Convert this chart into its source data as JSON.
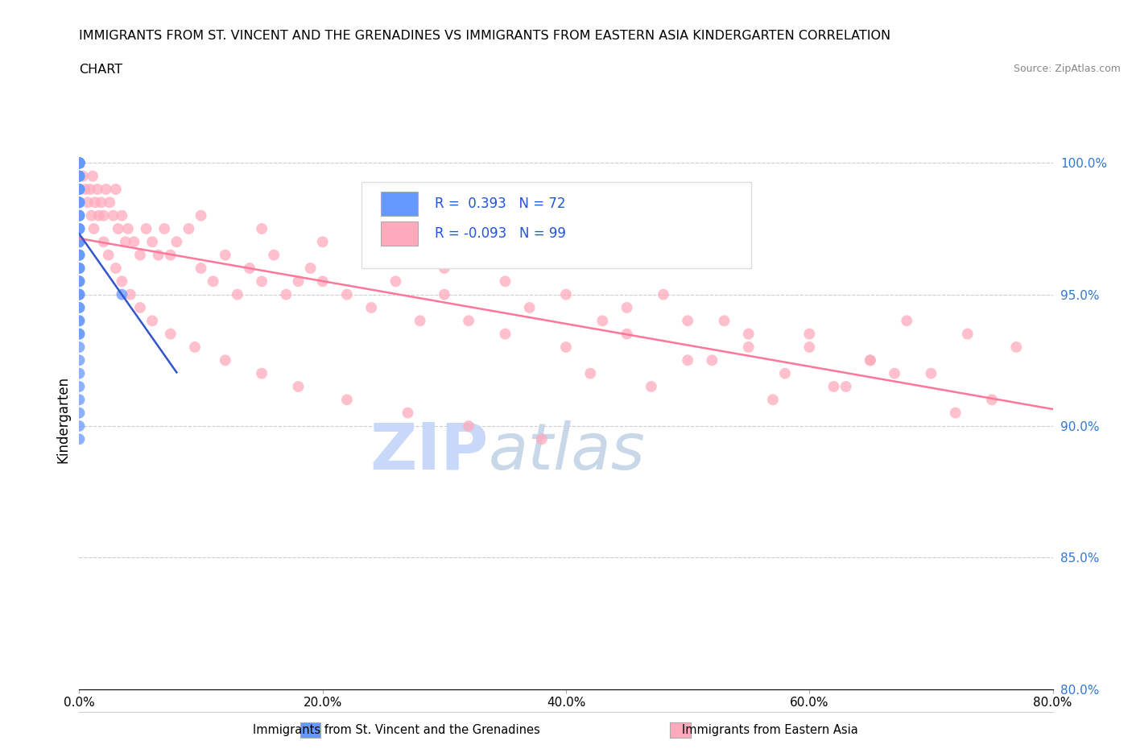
{
  "title_line1": "IMMIGRANTS FROM ST. VINCENT AND THE GRENADINES VS IMMIGRANTS FROM EASTERN ASIA KINDERGARTEN CORRELATION",
  "title_line2": "CHART",
  "source_text": "Source: ZipAtlas.com",
  "ylabel": "Kindergarten",
  "xlim": [
    0.0,
    80.0
  ],
  "ylim": [
    80.0,
    100.5
  ],
  "x_ticks": [
    0.0,
    20.0,
    40.0,
    60.0,
    80.0
  ],
  "y_ticks": [
    80.0,
    85.0,
    90.0,
    95.0,
    100.0
  ],
  "series1_color": "#6699ff",
  "series2_color": "#ffaabc",
  "series1_label": "Immigrants from St. Vincent and the Grenadines",
  "series2_label": "Immigrants from Eastern Asia",
  "series1_R": 0.393,
  "series1_N": 72,
  "series2_R": -0.093,
  "series2_N": 99,
  "series1_line_color": "#3355cc",
  "series2_line_color": "#ff7799",
  "watermark_zip": "ZIP",
  "watermark_atlas": "atlas",
  "watermark_color_zip": "#c8d8f8",
  "watermark_color_atlas": "#c8d8e8",
  "legend_R1_color": "#3366ff",
  "legend_R2_color": "#3366ff",
  "series1_x": [
    0.0,
    0.0,
    0.0,
    0.0,
    0.0,
    0.0,
    0.0,
    0.0,
    0.0,
    0.0,
    0.0,
    0.0,
    0.0,
    0.0,
    0.0,
    0.0,
    0.0,
    0.0,
    0.0,
    0.0,
    0.0,
    0.0,
    0.0,
    0.0,
    0.0,
    0.0,
    0.0,
    0.0,
    0.0,
    0.0,
    0.0,
    0.0,
    0.0,
    0.0,
    0.0,
    0.0,
    0.0,
    0.0,
    0.0,
    0.0,
    0.0,
    0.0,
    0.0,
    0.0,
    0.0,
    0.0,
    0.0,
    0.0,
    0.0,
    0.0,
    0.0,
    0.0,
    0.0,
    0.0,
    0.0,
    0.0,
    0.0,
    0.0,
    0.0,
    0.0,
    0.0,
    0.0,
    0.0,
    0.0,
    0.0,
    0.0,
    0.0,
    0.0,
    0.0,
    0.0,
    0.0,
    3.5
  ],
  "series1_y": [
    100.0,
    100.0,
    100.0,
    100.0,
    100.0,
    100.0,
    100.0,
    100.0,
    100.0,
    100.0,
    100.0,
    100.0,
    100.0,
    100.0,
    100.0,
    100.0,
    100.0,
    100.0,
    100.0,
    100.0,
    100.0,
    99.5,
    99.5,
    99.5,
    99.0,
    99.0,
    99.0,
    98.5,
    98.5,
    98.5,
    98.0,
    98.0,
    97.5,
    97.5,
    97.0,
    97.0,
    96.5,
    96.5,
    96.0,
    96.0,
    95.5,
    95.5,
    95.0,
    95.0,
    94.5,
    94.0,
    93.5,
    93.0,
    92.5,
    92.0,
    91.5,
    91.0,
    90.5,
    90.0,
    89.5,
    100.0,
    100.0,
    99.5,
    99.0,
    98.5,
    98.0,
    97.5,
    97.0,
    96.5,
    96.0,
    95.5,
    95.0,
    94.5,
    94.0,
    93.5,
    100.0,
    95.0
  ],
  "series2_x": [
    0.3,
    0.5,
    0.7,
    0.9,
    1.1,
    1.3,
    1.5,
    1.8,
    2.0,
    2.2,
    2.5,
    2.8,
    3.0,
    3.2,
    3.5,
    3.8,
    4.0,
    4.5,
    5.0,
    5.5,
    6.0,
    6.5,
    7.0,
    7.5,
    8.0,
    9.0,
    10.0,
    11.0,
    12.0,
    13.0,
    14.0,
    15.0,
    16.0,
    17.0,
    18.0,
    19.0,
    20.0,
    22.0,
    24.0,
    26.0,
    28.0,
    30.0,
    32.0,
    35.0,
    37.0,
    40.0,
    43.0,
    45.0,
    48.0,
    50.0,
    53.0,
    55.0,
    58.0,
    60.0,
    63.0,
    65.0,
    68.0,
    70.0,
    73.0,
    75.0,
    77.0,
    1.0,
    1.2,
    1.6,
    2.0,
    2.4,
    3.0,
    3.5,
    4.2,
    5.0,
    6.0,
    7.5,
    9.5,
    12.0,
    15.0,
    18.0,
    22.0,
    27.0,
    32.0,
    38.0,
    42.0,
    47.0,
    52.0,
    57.0,
    62.0,
    67.0,
    72.0,
    10.0,
    15.0,
    20.0,
    25.0,
    30.0,
    35.0,
    40.0,
    45.0,
    50.0,
    55.0,
    60.0,
    65.0
  ],
  "series2_y": [
    99.5,
    99.0,
    98.5,
    99.0,
    99.5,
    98.5,
    99.0,
    98.5,
    98.0,
    99.0,
    98.5,
    98.0,
    99.0,
    97.5,
    98.0,
    97.0,
    97.5,
    97.0,
    96.5,
    97.5,
    97.0,
    96.5,
    97.5,
    96.5,
    97.0,
    97.5,
    96.0,
    95.5,
    96.5,
    95.0,
    96.0,
    95.5,
    96.5,
    95.0,
    95.5,
    96.0,
    95.5,
    95.0,
    94.5,
    95.5,
    94.0,
    95.0,
    94.0,
    93.5,
    94.5,
    93.0,
    94.0,
    93.5,
    95.0,
    92.5,
    94.0,
    93.0,
    92.0,
    93.5,
    91.5,
    92.5,
    94.0,
    92.0,
    93.5,
    91.0,
    93.0,
    98.0,
    97.5,
    98.0,
    97.0,
    96.5,
    96.0,
    95.5,
    95.0,
    94.5,
    94.0,
    93.5,
    93.0,
    92.5,
    92.0,
    91.5,
    91.0,
    90.5,
    90.0,
    89.5,
    92.0,
    91.5,
    92.5,
    91.0,
    91.5,
    92.0,
    90.5,
    98.0,
    97.5,
    97.0,
    96.5,
    96.0,
    95.5,
    95.0,
    94.5,
    94.0,
    93.5,
    93.0,
    92.5
  ]
}
